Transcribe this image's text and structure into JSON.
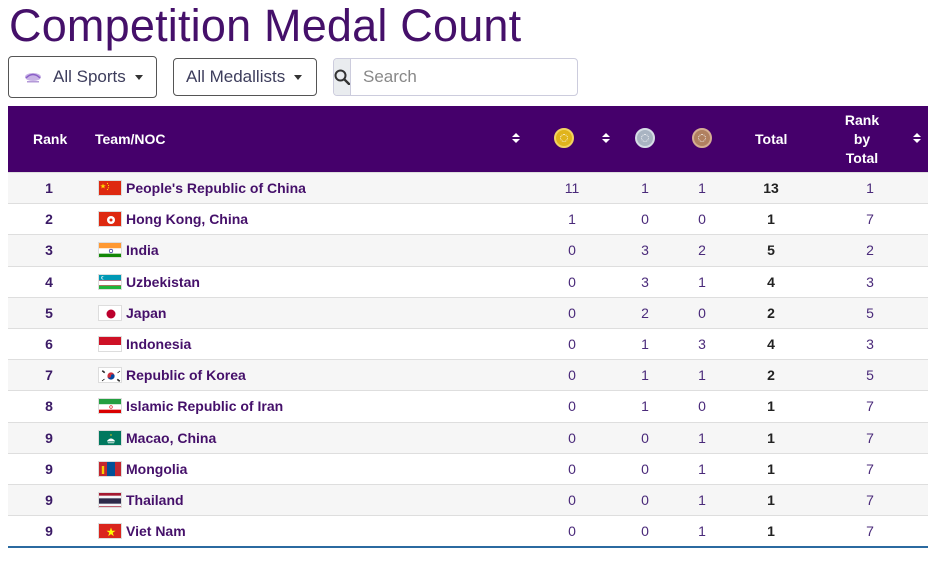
{
  "title": "Competition Medal Count",
  "filters": {
    "sports_label": "All Sports",
    "medallists_label": "All Medallists",
    "search_placeholder": "Search"
  },
  "table": {
    "headers": {
      "rank": "Rank",
      "team": "Team/NOC",
      "total": "Total",
      "rank_by_total_1": "Rank",
      "rank_by_total_2": "by",
      "rank_by_total_3": "Total"
    },
    "medal_icons": [
      "gold-medal-icon",
      "silver-medal-icon",
      "bronze-medal-icon"
    ],
    "rows": [
      {
        "rank": "1",
        "team": "People's Republic of China",
        "flag": "china",
        "gold": "11",
        "silver": "1",
        "bronze": "1",
        "total": "13",
        "rank_by_total": "1"
      },
      {
        "rank": "2",
        "team": "Hong Kong, China",
        "flag": "hong-kong",
        "gold": "1",
        "silver": "0",
        "bronze": "0",
        "total": "1",
        "rank_by_total": "7"
      },
      {
        "rank": "3",
        "team": "India",
        "flag": "india",
        "gold": "0",
        "silver": "3",
        "bronze": "2",
        "total": "5",
        "rank_by_total": "2"
      },
      {
        "rank": "4",
        "team": "Uzbekistan",
        "flag": "uzbekistan",
        "gold": "0",
        "silver": "3",
        "bronze": "1",
        "total": "4",
        "rank_by_total": "3"
      },
      {
        "rank": "5",
        "team": "Japan",
        "flag": "japan",
        "gold": "0",
        "silver": "2",
        "bronze": "0",
        "total": "2",
        "rank_by_total": "5"
      },
      {
        "rank": "6",
        "team": "Indonesia",
        "flag": "indonesia",
        "gold": "0",
        "silver": "1",
        "bronze": "3",
        "total": "4",
        "rank_by_total": "3"
      },
      {
        "rank": "7",
        "team": "Republic of Korea",
        "flag": "korea",
        "gold": "0",
        "silver": "1",
        "bronze": "1",
        "total": "2",
        "rank_by_total": "5"
      },
      {
        "rank": "8",
        "team": "Islamic Republic of Iran",
        "flag": "iran",
        "gold": "0",
        "silver": "1",
        "bronze": "0",
        "total": "1",
        "rank_by_total": "7"
      },
      {
        "rank": "9",
        "team": "Macao, China",
        "flag": "macao",
        "gold": "0",
        "silver": "0",
        "bronze": "1",
        "total": "1",
        "rank_by_total": "7"
      },
      {
        "rank": "9",
        "team": "Mongolia",
        "flag": "mongolia",
        "gold": "0",
        "silver": "0",
        "bronze": "1",
        "total": "1",
        "rank_by_total": "7"
      },
      {
        "rank": "9",
        "team": "Thailand",
        "flag": "thailand",
        "gold": "0",
        "silver": "0",
        "bronze": "1",
        "total": "1",
        "rank_by_total": "7"
      },
      {
        "rank": "9",
        "team": "Viet Nam",
        "flag": "vietnam",
        "gold": "0",
        "silver": "0",
        "bronze": "1",
        "total": "1",
        "rank_by_total": "7"
      }
    ]
  },
  "colors": {
    "header_bg": "#45006b",
    "title": "#45106a",
    "gold": "#e0b41c",
    "silver": "#a9b4c2",
    "bronze": "#b08060"
  }
}
